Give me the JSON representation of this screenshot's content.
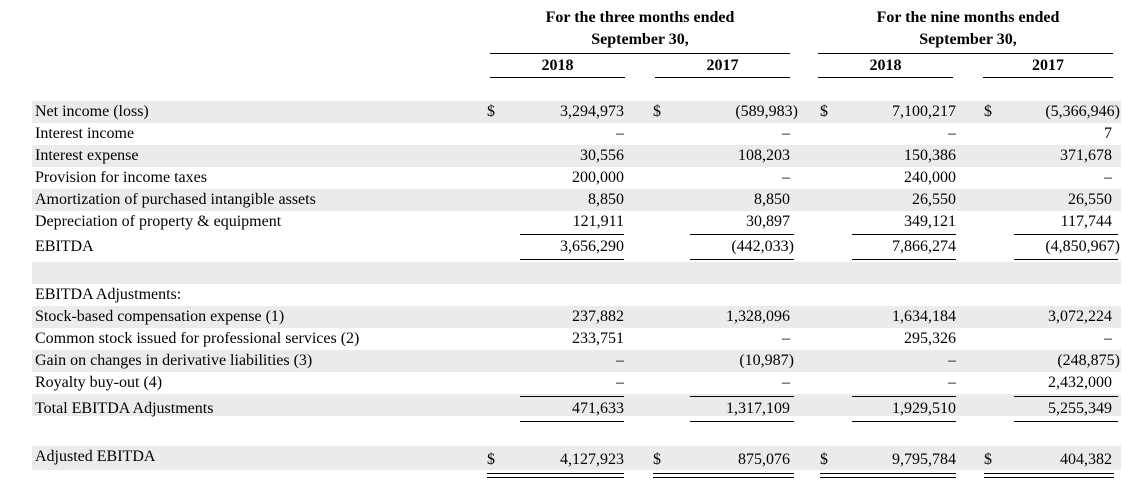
{
  "header": {
    "group1": "For the three months ended",
    "group1_sub": "September 30,",
    "group2": "For the nine months ended",
    "group2_sub": "September 30,",
    "years": [
      "2018",
      "2017",
      "2018",
      "2017"
    ]
  },
  "currency_symbol": "$",
  "rows": [
    {
      "label": "Net income (loss)",
      "values": [
        "3,294,973",
        "(589,983)",
        "7,100,217",
        "(5,366,946)"
      ]
    },
    {
      "label": "Interest income",
      "values": [
        "–",
        "–",
        "–",
        "7"
      ]
    },
    {
      "label": "Interest expense",
      "values": [
        "30,556",
        "108,203",
        "150,386",
        "371,678"
      ]
    },
    {
      "label": "Provision for income taxes",
      "values": [
        "200,000",
        "–",
        "240,000",
        "–"
      ]
    },
    {
      "label": "Amortization of purchased intangible assets",
      "values": [
        "8,850",
        "8,850",
        "26,550",
        "26,550"
      ]
    },
    {
      "label": "Depreciation of property & equipment",
      "values": [
        "121,911",
        "30,897",
        "349,121",
        "117,744"
      ]
    },
    {
      "label": "EBITDA",
      "values": [
        "3,656,290",
        "(442,033)",
        "7,866,274",
        "(4,850,967)"
      ]
    },
    {
      "label": "EBITDA Adjustments:",
      "values": [
        "",
        "",
        "",
        ""
      ]
    },
    {
      "label": "Stock-based compensation expense (1)",
      "values": [
        "237,882",
        "1,328,096",
        "1,634,184",
        "3,072,224"
      ]
    },
    {
      "label": "Common stock issued for professional services (2)",
      "values": [
        "233,751",
        "–",
        "295,326",
        "–"
      ]
    },
    {
      "label": "Gain on changes in derivative liabilities (3)",
      "values": [
        "–",
        "(10,987)",
        "–",
        "(248,875)"
      ]
    },
    {
      "label": "Royalty buy-out (4)",
      "values": [
        "–",
        "–",
        "–",
        "2,432,000"
      ]
    },
    {
      "label": "Total EBITDA Adjustments",
      "values": [
        "471,633",
        "1,317,109",
        "1,929,510",
        "5,255,349"
      ]
    },
    {
      "label": "Adjusted EBITDA",
      "values": [
        "4,127,923",
        "875,076",
        "9,795,784",
        "404,382"
      ]
    }
  ]
}
